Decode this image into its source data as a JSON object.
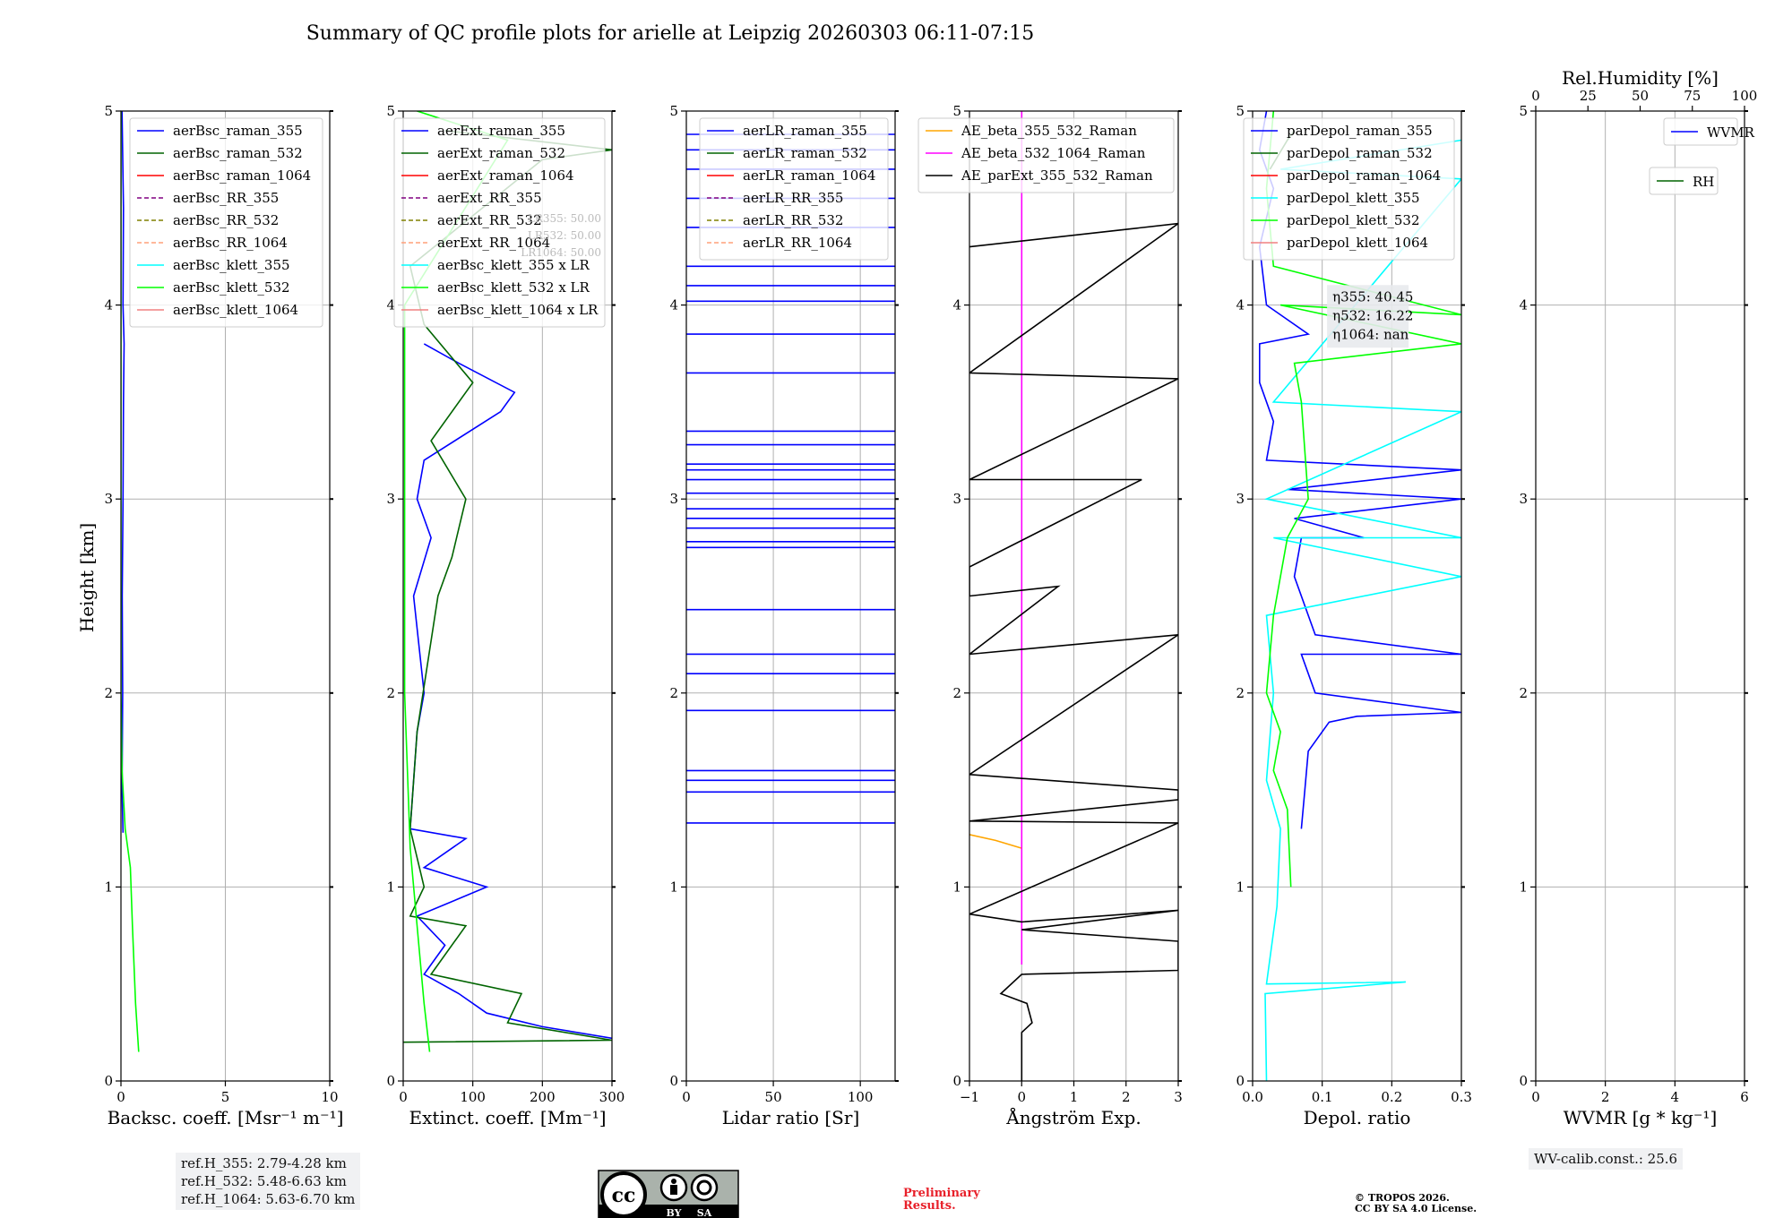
{
  "title": "Summary of QC profile plots for arielle at Leipzig 20260303 06:11-07:15",
  "height_label": "Height [km]",
  "colors": {
    "blue": "#0000ff",
    "green": "#006400",
    "red": "#ff0000",
    "purple": "#800080",
    "olive": "#808000",
    "salmon": "#ffa07a",
    "cyan": "#00ffff",
    "lime": "#00ff00",
    "lightcoral": "#f08080",
    "orange": "#ffa500",
    "magenta": "#ff00ff",
    "black": "#000000"
  },
  "chart_data": [
    {
      "type": "line",
      "id": "bsc",
      "xlabel": "Backsc. coeff. [Msr⁻¹ m⁻¹]",
      "xlim": [
        0,
        10
      ],
      "ylim": [
        0,
        5
      ],
      "xticks": [
        0,
        5,
        10
      ],
      "yticks": [
        0,
        1,
        2,
        3,
        4,
        5
      ],
      "legend": "top-right",
      "series": [
        {
          "name": "aerBsc_raman_355",
          "color": "blue",
          "dash": false,
          "points": [
            [
              0.1,
              1.28
            ],
            [
              0.05,
              1.5
            ],
            [
              0.08,
              2.0
            ],
            [
              0.06,
              2.5
            ],
            [
              0.1,
              3.0
            ],
            [
              0.12,
              3.5
            ],
            [
              0.15,
              3.8
            ],
            [
              0.1,
              4.0
            ],
            [
              0.12,
              4.5
            ],
            [
              0.05,
              5.0
            ]
          ]
        },
        {
          "name": "aerBsc_raman_532",
          "color": "green",
          "dash": false,
          "points": []
        },
        {
          "name": "aerBsc_raman_1064",
          "color": "red",
          "dash": false,
          "points": []
        },
        {
          "name": "aerBsc_RR_355",
          "color": "purple",
          "dash": true,
          "points": []
        },
        {
          "name": "aerBsc_RR_532",
          "color": "olive",
          "dash": true,
          "points": []
        },
        {
          "name": "aerBsc_RR_1064",
          "color": "salmon",
          "dash": true,
          "points": []
        },
        {
          "name": "aerBsc_klett_355",
          "color": "cyan",
          "dash": false,
          "points": []
        },
        {
          "name": "aerBsc_klett_532",
          "color": "lime",
          "dash": false,
          "points": [
            [
              0.85,
              0.15
            ],
            [
              0.7,
              0.4
            ],
            [
              0.55,
              0.8
            ],
            [
              0.45,
              1.1
            ],
            [
              0.2,
              1.3
            ],
            [
              0.05,
              1.6
            ],
            [
              0.0,
              2.0
            ],
            [
              0.0,
              5.0
            ]
          ]
        },
        {
          "name": "aerBsc_klett_1064",
          "color": "lightcoral",
          "dash": false,
          "points": []
        }
      ]
    },
    {
      "type": "line",
      "id": "ext",
      "xlabel": "Extinct. coeff. [Mm⁻¹]",
      "xlim": [
        0,
        300
      ],
      "ylim": [
        0,
        5
      ],
      "xticks": [
        0,
        100,
        200,
        300
      ],
      "yticks": [
        0,
        1,
        2,
        3,
        4,
        5
      ],
      "legend": "top-right",
      "overlay_text": [
        "LR355: 50.00",
        "LR532: 50.00",
        "LR1064: 50.00"
      ],
      "series": [
        {
          "name": "aerExt_raman_355",
          "color": "blue",
          "dash": false,
          "points": [
            [
              300,
              0.22
            ],
            [
              200,
              0.28
            ],
            [
              120,
              0.35
            ],
            [
              80,
              0.45
            ],
            [
              30,
              0.55
            ],
            [
              60,
              0.7
            ],
            [
              20,
              0.85
            ],
            [
              120,
              1.0
            ],
            [
              30,
              1.1
            ],
            [
              90,
              1.25
            ],
            [
              10,
              1.3
            ],
            [
              20,
              1.8
            ],
            [
              30,
              2.0
            ],
            [
              15,
              2.5
            ],
            [
              40,
              2.8
            ],
            [
              20,
              3.0
            ],
            [
              30,
              3.2
            ],
            [
              140,
              3.45
            ],
            [
              160,
              3.55
            ],
            [
              80,
              3.7
            ],
            [
              30,
              3.8
            ]
          ]
        },
        {
          "name": "aerExt_raman_532",
          "color": "green",
          "dash": false,
          "points": [
            [
              0,
              0.2
            ],
            [
              300,
              0.21
            ],
            [
              150,
              0.3
            ],
            [
              170,
              0.45
            ],
            [
              40,
              0.55
            ],
            [
              90,
              0.8
            ],
            [
              10,
              0.85
            ],
            [
              30,
              1.0
            ],
            [
              10,
              1.3
            ],
            [
              20,
              1.8
            ],
            [
              50,
              2.5
            ],
            [
              70,
              2.7
            ],
            [
              90,
              3.0
            ],
            [
              40,
              3.3
            ],
            [
              100,
              3.6
            ],
            [
              30,
              3.9
            ],
            [
              10,
              4.2
            ],
            [
              200,
              4.75
            ],
            [
              300,
              4.8
            ],
            [
              60,
              4.9
            ]
          ]
        },
        {
          "name": "aerExt_raman_1064",
          "color": "red",
          "dash": false,
          "points": []
        },
        {
          "name": "aerExt_RR_355",
          "color": "purple",
          "dash": true,
          "points": []
        },
        {
          "name": "aerExt_RR_532",
          "color": "olive",
          "dash": true,
          "points": []
        },
        {
          "name": "aerExt_RR_1064",
          "color": "salmon",
          "dash": true,
          "points": []
        },
        {
          "name": "aerBsc_klett_355 x LR",
          "color": "cyan",
          "dash": false,
          "points": []
        },
        {
          "name": "aerBsc_klett_532 x LR",
          "color": "lime",
          "dash": false,
          "points": [
            [
              38,
              0.15
            ],
            [
              30,
              0.4
            ],
            [
              20,
              0.8
            ],
            [
              10,
              1.2
            ],
            [
              2,
              2.0
            ],
            [
              2,
              4.0
            ],
            [
              150,
              4.85
            ],
            [
              20,
              5.0
            ]
          ]
        },
        {
          "name": "aerBsc_klett_1064 x LR",
          "color": "lightcoral",
          "dash": false,
          "points": []
        }
      ]
    },
    {
      "type": "line",
      "id": "lr",
      "xlabel": "Lidar ratio [Sr]",
      "xlim": [
        0,
        120
      ],
      "ylim": [
        0,
        5
      ],
      "xticks": [
        0,
        50,
        100
      ],
      "yticks": [
        0,
        1,
        2,
        3,
        4,
        5
      ],
      "legend": "top-right",
      "series": [
        {
          "name": "aerLR_raman_355",
          "color": "blue",
          "dash": false,
          "spikes": [
            1.33,
            1.49,
            1.55,
            1.6,
            1.91,
            2.1,
            2.2,
            2.43,
            2.75,
            2.78,
            2.85,
            2.9,
            2.95,
            3.03,
            3.1,
            3.15,
            3.18,
            3.28,
            3.35,
            3.65,
            3.85,
            4.02,
            4.1,
            4.2,
            4.4,
            4.55,
            4.7,
            4.8,
            4.88
          ]
        },
        {
          "name": "aerLR_raman_532",
          "color": "green",
          "dash": false,
          "points": []
        },
        {
          "name": "aerLR_raman_1064",
          "color": "red",
          "dash": false,
          "points": []
        },
        {
          "name": "aerLR_RR_355",
          "color": "purple",
          "dash": true,
          "points": []
        },
        {
          "name": "aerLR_RR_532",
          "color": "olive",
          "dash": true,
          "points": []
        },
        {
          "name": "aerLR_RR_1064",
          "color": "salmon",
          "dash": true,
          "points": []
        }
      ]
    },
    {
      "type": "line",
      "id": "ae",
      "xlabel": "Ångström Exp.",
      "xlim": [
        -1,
        3
      ],
      "ylim": [
        0,
        5
      ],
      "xticks": [
        -1,
        0,
        1,
        2,
        3
      ],
      "yticks": [
        0,
        1,
        2,
        3,
        4,
        5
      ],
      "legend": "top-left",
      "series": [
        {
          "name": "AE_beta_355_532_Raman",
          "color": "orange",
          "dash": false,
          "points": [
            [
              -1,
              1.27
            ],
            [
              -0.5,
              1.24
            ],
            [
              0,
              1.2
            ]
          ]
        },
        {
          "name": "AE_beta_532_1064_Raman",
          "color": "magenta",
          "dash": false,
          "points": [
            [
              0,
              0.6
            ],
            [
              0,
              5.0
            ]
          ]
        },
        {
          "name": "AE_parExt_355_532_Raman",
          "color": "black",
          "dash": false,
          "points": [
            [
              0,
              0
            ],
            [
              0,
              0.25
            ],
            [
              0.2,
              0.3
            ],
            [
              0.1,
              0.4
            ],
            [
              -0.4,
              0.45
            ],
            [
              0,
              0.55
            ],
            [
              3,
              0.57
            ],
            [
              3,
              0.72
            ],
            [
              0,
              0.78
            ],
            [
              3,
              0.88
            ],
            [
              0,
              0.82
            ],
            [
              -1,
              0.86
            ],
            [
              3,
              1.33
            ],
            [
              -1,
              1.34
            ],
            [
              3,
              1.45
            ],
            [
              3,
              1.5
            ],
            [
              -1,
              1.58
            ],
            [
              3,
              2.3
            ],
            [
              -1,
              2.2
            ],
            [
              0.7,
              2.55
            ],
            [
              -1,
              2.5
            ],
            [
              -1,
              2.65
            ],
            [
              2.3,
              3.1
            ],
            [
              -1,
              3.1
            ],
            [
              3,
              3.62
            ],
            [
              -1,
              3.65
            ],
            [
              3,
              4.42
            ],
            [
              -1,
              4.3
            ]
          ]
        }
      ]
    },
    {
      "type": "line",
      "id": "depol",
      "xlabel": "Depol. ratio",
      "xlim": [
        0,
        0.3
      ],
      "ylim": [
        0,
        5
      ],
      "xticks": [
        0,
        0.1,
        0.2,
        0.3
      ],
      "tick_labels": [
        "0.0",
        "0.1",
        "0.2",
        "0.3"
      ],
      "yticks": [
        0,
        1,
        2,
        3,
        4,
        5
      ],
      "legend": "top-right",
      "annotation": {
        "eta355": "η355: 40.45",
        "eta532": "η532: 16.22",
        "eta1064": "η1064: nan"
      },
      "series": [
        {
          "name": "parDepol_raman_355",
          "color": "blue",
          "dash": false,
          "points": [
            [
              0.07,
              1.3
            ],
            [
              0.075,
              1.5
            ],
            [
              0.08,
              1.7
            ],
            [
              0.11,
              1.85
            ],
            [
              0.15,
              1.88
            ],
            [
              0.3,
              1.9
            ],
            [
              0.09,
              2.0
            ],
            [
              0.07,
              2.2
            ],
            [
              0.3,
              2.2
            ],
            [
              0.09,
              2.3
            ],
            [
              0.06,
              2.6
            ],
            [
              0.07,
              2.8
            ],
            [
              0.16,
              2.8
            ],
            [
              0.06,
              2.9
            ],
            [
              0.3,
              3.0
            ],
            [
              0.05,
              3.05
            ],
            [
              0.3,
              3.15
            ],
            [
              0.02,
              3.2
            ],
            [
              0.03,
              3.4
            ],
            [
              0.01,
              3.6
            ],
            [
              0.01,
              3.8
            ],
            [
              0.08,
              3.85
            ],
            [
              0.02,
              4.0
            ],
            [
              0.01,
              4.3
            ],
            [
              0.03,
              4.6
            ],
            [
              0.01,
              4.8
            ],
            [
              0.02,
              5.0
            ]
          ]
        },
        {
          "name": "parDepol_raman_532",
          "color": "green",
          "dash": false,
          "points": [
            [
              0.025,
              4.7
            ],
            [
              0.05,
              4.85
            ],
            [
              0.06,
              4.9
            ]
          ]
        },
        {
          "name": "parDepol_raman_1064",
          "color": "red",
          "dash": false,
          "points": []
        },
        {
          "name": "parDepol_klett_355",
          "color": "cyan",
          "dash": false,
          "points": [
            [
              0.02,
              0
            ],
            [
              0.018,
              0.45
            ],
            [
              0.22,
              0.51
            ],
            [
              0.02,
              0.5
            ],
            [
              0.035,
              0.9
            ],
            [
              0.04,
              1.3
            ],
            [
              0.02,
              1.55
            ],
            [
              0.03,
              2.0
            ],
            [
              0.02,
              2.4
            ],
            [
              0.3,
              2.6
            ],
            [
              0.03,
              2.8
            ],
            [
              0.3,
              2.8
            ],
            [
              0.02,
              3.0
            ],
            [
              0.3,
              3.45
            ],
            [
              0.03,
              3.5
            ],
            [
              0.3,
              4.65
            ],
            [
              0.04,
              4.7
            ],
            [
              0.3,
              4.85
            ]
          ]
        },
        {
          "name": "parDepol_klett_532",
          "color": "lime",
          "dash": false,
          "points": [
            [
              0.055,
              1.0
            ],
            [
              0.05,
              1.4
            ],
            [
              0.03,
              1.6
            ],
            [
              0.04,
              1.8
            ],
            [
              0.02,
              2.0
            ],
            [
              0.03,
              2.4
            ],
            [
              0.05,
              2.8
            ],
            [
              0.08,
              3.0
            ],
            [
              0.07,
              3.5
            ],
            [
              0.06,
              3.7
            ],
            [
              0.3,
              3.8
            ],
            [
              0.04,
              4.0
            ],
            [
              0.3,
              3.95
            ],
            [
              0.03,
              4.2
            ],
            [
              0.02,
              4.6
            ],
            [
              0.03,
              5.0
            ]
          ]
        },
        {
          "name": "parDepol_klett_1064",
          "color": "lightcoral",
          "dash": false,
          "points": []
        }
      ]
    },
    {
      "type": "line",
      "id": "wv",
      "xlabel": "WVMR [g * kg⁻¹]",
      "xlim": [
        0,
        6
      ],
      "ylim": [
        0,
        5
      ],
      "xticks": [
        0,
        2,
        4,
        6
      ],
      "yticks": [
        0,
        1,
        2,
        3,
        4,
        5
      ],
      "top_axis": {
        "label": "Rel.Humidity [%]",
        "ticks": [
          0,
          25,
          50,
          75,
          100
        ]
      },
      "legend": "top-right",
      "series": [
        {
          "name": "WVMR",
          "color": "blue",
          "dash": false,
          "points": []
        },
        {
          "name": "RH",
          "color": "green",
          "dash": false,
          "points": []
        }
      ]
    }
  ],
  "ref_heights": [
    "ref.H_355: 2.79-4.28 km",
    "ref.H_532: 5.48-6.63 km",
    "ref.H_1064: 5.63-6.70 km"
  ],
  "wv_calib": "WV-calib.const.: 25.6",
  "license_badge": {
    "by": "BY",
    "sa": "SA"
  },
  "preliminary": [
    "Preliminary",
    "Results."
  ],
  "copyright": [
    "© TROPOS 2026.",
    "CC BY SA 4.0 License."
  ]
}
